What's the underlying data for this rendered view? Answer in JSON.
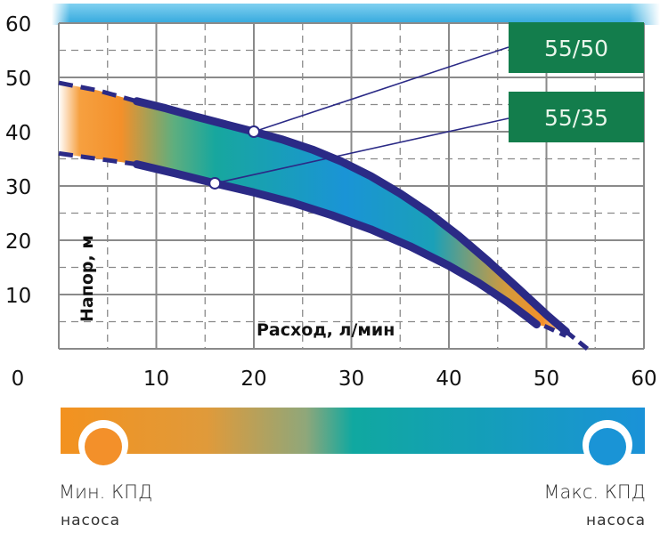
{
  "chart_data": {
    "type": "area",
    "xlabel": "Расход, л/мин",
    "ylabel": "Напор, м",
    "xlim": [
      0,
      60
    ],
    "ylim": [
      0,
      60
    ],
    "x_ticks": [
      0,
      10,
      20,
      30,
      40,
      50,
      60
    ],
    "y_ticks": [
      10,
      20,
      30,
      40,
      50,
      60
    ],
    "grid": true,
    "series": [
      {
        "name": "55/50",
        "dashed_start": [
          [
            0,
            49
          ],
          [
            4,
            47.6
          ],
          [
            8,
            45.6
          ]
        ],
        "solid": [
          [
            8,
            45.6
          ],
          [
            11,
            44.3
          ],
          [
            14,
            42.8
          ],
          [
            17,
            41.4
          ],
          [
            20,
            40
          ],
          [
            23,
            38.5
          ],
          [
            26,
            36.7
          ],
          [
            29,
            34.5
          ],
          [
            32,
            31.8
          ],
          [
            35,
            28.6
          ],
          [
            38,
            25
          ],
          [
            41,
            20.8
          ],
          [
            44,
            16.2
          ],
          [
            47,
            11.3
          ],
          [
            50,
            6.3
          ],
          [
            52,
            3.2
          ]
        ],
        "dashed_end": [
          [
            52,
            3.2
          ],
          [
            54.2,
            0
          ]
        ],
        "marker": [
          20,
          40
        ]
      },
      {
        "name": "55/35",
        "dashed_start": [
          [
            0,
            36
          ],
          [
            4,
            35
          ],
          [
            8,
            34
          ]
        ],
        "solid": [
          [
            8,
            34
          ],
          [
            12,
            32.3
          ],
          [
            16,
            30.5
          ],
          [
            20,
            28.8
          ],
          [
            24,
            26.9
          ],
          [
            28,
            24.6
          ],
          [
            32,
            22
          ],
          [
            36,
            18.9
          ],
          [
            40,
            15.3
          ],
          [
            43,
            12.2
          ],
          [
            46,
            8.6
          ],
          [
            48,
            5.9
          ],
          [
            49,
            4.5
          ]
        ],
        "dashed_end": [
          [
            49.8,
            4.2
          ],
          [
            52,
            2.4
          ]
        ],
        "marker": [
          16,
          30.5
        ]
      }
    ],
    "efficiency_legend": {
      "min_label": "Мин. КПД",
      "min_sub": "насоса",
      "max_label": "Макс. КПД",
      "max_sub": "насоса",
      "min_color": "#f3902a",
      "max_color": "#1a94d6"
    },
    "colors": {
      "curve": "#2b2a86",
      "label_box": "#137d4c",
      "grid": "#8a8a8a",
      "top_band": "#3aaee0"
    }
  }
}
